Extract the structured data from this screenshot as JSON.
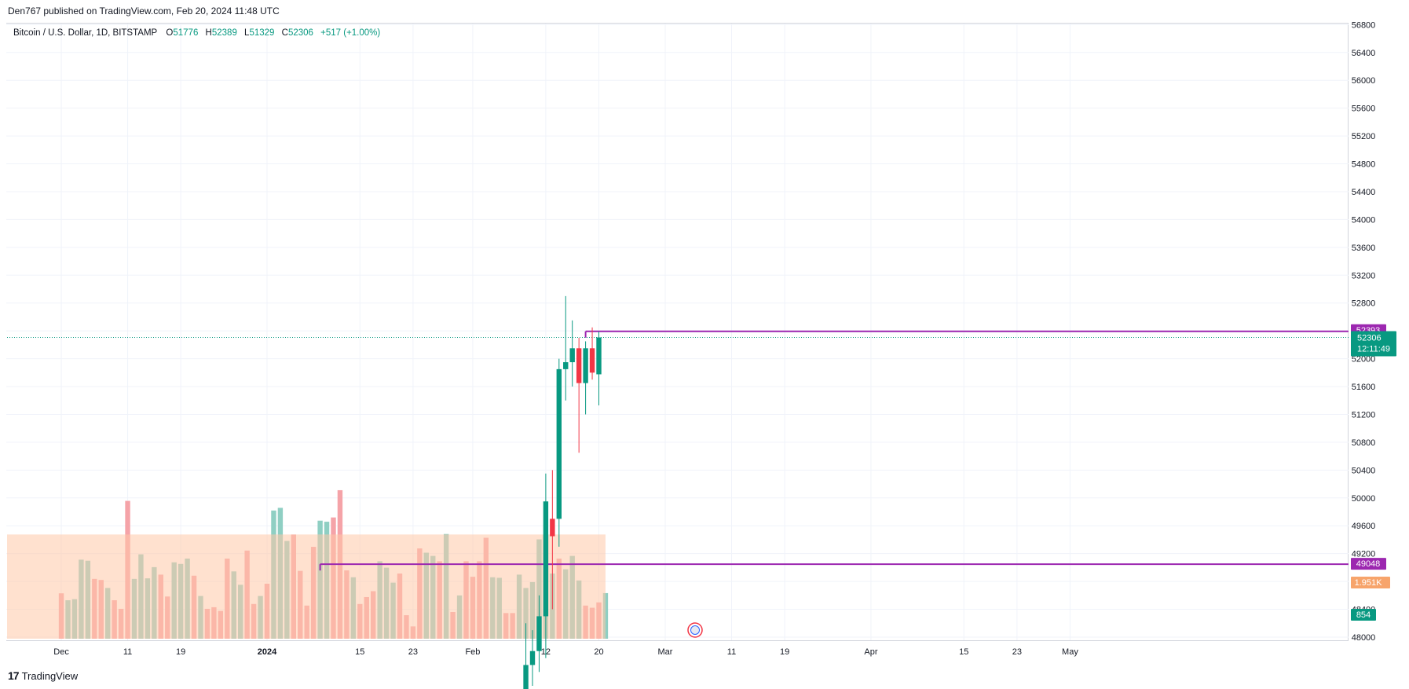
{
  "header": {
    "published_text": "Den767 published on TradingView.com, Feb 20, 2024 11:48 UTC"
  },
  "legend": {
    "symbol": "Bitcoin / U.S. Dollar, 1D, BITSTAMP",
    "open_key": "O",
    "open": "51776",
    "high_key": "H",
    "high": "52389",
    "low_key": "L",
    "low": "51329",
    "close_key": "C",
    "close": "52306",
    "change": "+517 (+1.00%)"
  },
  "footer": {
    "brand": "TradingView",
    "logo_glyph": "17"
  },
  "colors": {
    "up": "#089981",
    "down": "#f23645",
    "vol_up": "#8fcfc3",
    "vol_down": "#f5a3a8",
    "vol_ma": "#ffc8a8",
    "level": "#9c27b0",
    "volma_label": "#f7a46b"
  },
  "chart_data": {
    "type": "candlestick",
    "ylim": [
      48000,
      56800
    ],
    "y_ticks": [
      "56800",
      "56400",
      "56000",
      "55600",
      "55200",
      "54800",
      "54400",
      "54000",
      "53600",
      "53200",
      "52800",
      "52400",
      "52000",
      "51600",
      "51200",
      "50800",
      "50400",
      "50000",
      "49600",
      "49200",
      "48800",
      "48400",
      "48000"
    ],
    "x_ticks": [
      {
        "label": "Dec",
        "day": -31,
        "bold": false
      },
      {
        "label": "11",
        "day": -21,
        "bold": false
      },
      {
        "label": "19",
        "day": -13,
        "bold": false
      },
      {
        "label": "2024",
        "day": 0,
        "bold": true
      },
      {
        "label": "15",
        "day": 14,
        "bold": false
      },
      {
        "label": "23",
        "day": 22,
        "bold": false
      },
      {
        "label": "Feb",
        "day": 31,
        "bold": false
      },
      {
        "label": "12",
        "day": 42,
        "bold": false
      },
      {
        "label": "20",
        "day": 50,
        "bold": false
      },
      {
        "label": "Mar",
        "day": 60,
        "bold": false
      },
      {
        "label": "11",
        "day": 70,
        "bold": false
      },
      {
        "label": "19",
        "day": 78,
        "bold": false
      },
      {
        "label": "Apr",
        "day": 91,
        "bold": false
      },
      {
        "label": "15",
        "day": 105,
        "bold": false
      },
      {
        "label": "23",
        "day": 113,
        "bold": false
      },
      {
        "label": "May",
        "day": 121,
        "bold": false
      }
    ],
    "candles": [
      {
        "date": "2024-02-09",
        "o": 47100,
        "h": 48200,
        "l": 46800,
        "c": 47600
      },
      {
        "date": "2024-02-10",
        "o": 47600,
        "h": 48100,
        "l": 47300,
        "c": 47800
      },
      {
        "date": "2024-02-11",
        "o": 47800,
        "h": 48600,
        "l": 47500,
        "c": 48300
      },
      {
        "date": "2024-02-12",
        "o": 48300,
        "h": 50350,
        "l": 47700,
        "c": 49950
      },
      {
        "date": "2024-02-13",
        "o": 49700,
        "h": 50400,
        "l": 48400,
        "c": 49450
      },
      {
        "date": "2024-02-14",
        "o": 49700,
        "h": 52000,
        "l": 49300,
        "c": 51850
      },
      {
        "date": "2024-02-15",
        "o": 51850,
        "h": 52900,
        "l": 51400,
        "c": 51950
      },
      {
        "date": "2024-02-16",
        "o": 51950,
        "h": 52550,
        "l": 51600,
        "c": 52150
      },
      {
        "date": "2024-02-17",
        "o": 52150,
        "h": 52300,
        "l": 50650,
        "c": 51650
      },
      {
        "date": "2024-02-18",
        "o": 51650,
        "h": 52250,
        "l": 51200,
        "c": 52150
      },
      {
        "date": "2024-02-19",
        "o": 52150,
        "h": 52450,
        "l": 51700,
        "c": 51800
      },
      {
        "date": "2024-02-20",
        "o": 51776,
        "h": 52389,
        "l": 51329,
        "c": 52306
      }
    ],
    "volumes": [
      {
        "day": -31,
        "v": 850,
        "up": false
      },
      {
        "day": -30,
        "v": 720,
        "up": true
      },
      {
        "day": -29,
        "v": 740,
        "up": true
      },
      {
        "day": -28,
        "v": 1480,
        "up": true
      },
      {
        "day": -27,
        "v": 1460,
        "up": true
      },
      {
        "day": -26,
        "v": 1120,
        "up": false
      },
      {
        "day": -25,
        "v": 1100,
        "up": false
      },
      {
        "day": -24,
        "v": 950,
        "up": true
      },
      {
        "day": -23,
        "v": 720,
        "up": false
      },
      {
        "day": -22,
        "v": 560,
        "up": false
      },
      {
        "day": -21,
        "v": 2580,
        "up": false
      },
      {
        "day": -20,
        "v": 1120,
        "up": true
      },
      {
        "day": -19,
        "v": 1580,
        "up": true
      },
      {
        "day": -18,
        "v": 1130,
        "up": true
      },
      {
        "day": -17,
        "v": 1340,
        "up": true
      },
      {
        "day": -16,
        "v": 1200,
        "up": false
      },
      {
        "day": -15,
        "v": 790,
        "up": false
      },
      {
        "day": -14,
        "v": 1430,
        "up": true
      },
      {
        "day": -13,
        "v": 1400,
        "up": true
      },
      {
        "day": -12,
        "v": 1500,
        "up": true
      },
      {
        "day": -11,
        "v": 1180,
        "up": false
      },
      {
        "day": -10,
        "v": 800,
        "up": true
      },
      {
        "day": -9,
        "v": 560,
        "up": false
      },
      {
        "day": -8,
        "v": 590,
        "up": false
      },
      {
        "day": -7,
        "v": 520,
        "up": false
      },
      {
        "day": -6,
        "v": 1500,
        "up": false
      },
      {
        "day": -5,
        "v": 1260,
        "up": true
      },
      {
        "day": -4,
        "v": 1010,
        "up": true
      },
      {
        "day": -3,
        "v": 1650,
        "up": false
      },
      {
        "day": -2,
        "v": 650,
        "up": false
      },
      {
        "day": -1,
        "v": 800,
        "up": true
      },
      {
        "day": 0,
        "v": 1030,
        "up": false
      },
      {
        "day": 1,
        "v": 2400,
        "up": true
      },
      {
        "day": 2,
        "v": 2450,
        "up": true
      },
      {
        "day": 3,
        "v": 1830,
        "up": true
      },
      {
        "day": 4,
        "v": 1950,
        "up": false
      },
      {
        "day": 5,
        "v": 1270,
        "up": false
      },
      {
        "day": 6,
        "v": 620,
        "up": false
      },
      {
        "day": 7,
        "v": 1720,
        "up": false
      },
      {
        "day": 8,
        "v": 2210,
        "up": true
      },
      {
        "day": 9,
        "v": 2190,
        "up": true
      },
      {
        "day": 10,
        "v": 2270,
        "up": false
      },
      {
        "day": 11,
        "v": 2780,
        "up": false
      },
      {
        "day": 12,
        "v": 1280,
        "up": false
      },
      {
        "day": 13,
        "v": 1150,
        "up": true
      },
      {
        "day": 14,
        "v": 650,
        "up": false
      },
      {
        "day": 15,
        "v": 780,
        "up": false
      },
      {
        "day": 16,
        "v": 890,
        "up": false
      },
      {
        "day": 17,
        "v": 1450,
        "up": true
      },
      {
        "day": 18,
        "v": 1330,
        "up": true
      },
      {
        "day": 19,
        "v": 1050,
        "up": true
      },
      {
        "day": 20,
        "v": 1220,
        "up": false
      },
      {
        "day": 21,
        "v": 440,
        "up": false
      },
      {
        "day": 22,
        "v": 230,
        "up": false
      },
      {
        "day": 23,
        "v": 1690,
        "up": false
      },
      {
        "day": 24,
        "v": 1610,
        "up": true
      },
      {
        "day": 25,
        "v": 1550,
        "up": true
      },
      {
        "day": 26,
        "v": 1450,
        "up": false
      },
      {
        "day": 27,
        "v": 1960,
        "up": true
      },
      {
        "day": 28,
        "v": 500,
        "up": false
      },
      {
        "day": 29,
        "v": 810,
        "up": true
      },
      {
        "day": 30,
        "v": 1450,
        "up": false
      },
      {
        "day": 31,
        "v": 1160,
        "up": false
      },
      {
        "day": 32,
        "v": 1450,
        "up": false
      },
      {
        "day": 33,
        "v": 1890,
        "up": false
      },
      {
        "day": 34,
        "v": 1150,
        "up": true
      },
      {
        "day": 35,
        "v": 1140,
        "up": true
      },
      {
        "day": 36,
        "v": 480,
        "up": false
      },
      {
        "day": 37,
        "v": 480,
        "up": false
      },
      {
        "day": 38,
        "v": 1200,
        "up": true
      },
      {
        "day": 39,
        "v": 950,
        "up": true
      },
      {
        "day": 40,
        "v": 1060,
        "up": true
      },
      {
        "day": 41,
        "v": 1860,
        "up": true
      },
      {
        "day": 42,
        "v": 1950,
        "up": true
      },
      {
        "day": 43,
        "v": 1220,
        "up": true
      },
      {
        "day": 44,
        "v": 1500,
        "up": false
      },
      {
        "day": 45,
        "v": 1300,
        "up": true
      },
      {
        "day": 46,
        "v": 1550,
        "up": true
      },
      {
        "day": 47,
        "v": 1090,
        "up": true
      },
      {
        "day": 48,
        "v": 620,
        "up": false
      },
      {
        "day": 49,
        "v": 580,
        "up": false
      },
      {
        "day": 50,
        "v": 680,
        "up": false
      },
      {
        "day": 51,
        "v": 854,
        "up": true
      }
    ],
    "volume_ma": 1951,
    "levels": [
      {
        "value": 52393,
        "label": "52393",
        "from_day": 48
      },
      {
        "value": 49048,
        "label": "49048",
        "from_day": 8
      }
    ],
    "last_price": {
      "value": 52306,
      "label": "52306",
      "countdown": "12:11:49"
    },
    "volume_ma_label": "1.951K",
    "volume_label": "854"
  }
}
